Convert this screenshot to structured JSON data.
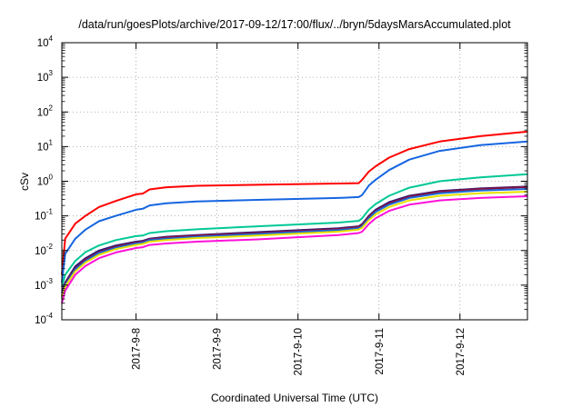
{
  "chart_data": {
    "type": "line",
    "title": "/data/run/goesPlots/archive/2017-09-12/17:00/flux/../bryn/5daysMarsAccumulated.plot",
    "xlabel": "Coordinated Universal Time (UTC)",
    "ylabel": "cSv",
    "y_scale": "log",
    "ylim": [
      0.0001,
      10000
    ],
    "xlim": [
      "2017-09-07 02:00",
      "2017-09-12 20:00"
    ],
    "x_ticks": [
      "2017-9-8",
      "2017-9-9",
      "2017-9-10",
      "2017-9-11",
      "2017-9-12"
    ],
    "y_ticks": [
      {
        "value": 0.0001,
        "base": "10",
        "exp": "-4"
      },
      {
        "value": 0.001,
        "base": "10",
        "exp": "-3"
      },
      {
        "value": 0.01,
        "base": "10",
        "exp": "-2"
      },
      {
        "value": 0.1,
        "base": "10",
        "exp": "-1"
      },
      {
        "value": 1,
        "base": "10",
        "exp": "0"
      },
      {
        "value": 10,
        "base": "10",
        "exp": "1"
      },
      {
        "value": 100,
        "base": "10",
        "exp": "2"
      },
      {
        "value": 1000,
        "base": "10",
        "exp": "3"
      },
      {
        "value": 10000,
        "base": "10",
        "exp": "4"
      }
    ],
    "grid": "dotted",
    "legend": "none",
    "series": [
      {
        "color": "#ff0000",
        "points": [
          [
            "2017-09-07 02:00",
            0.002
          ],
          [
            "2017-09-07 03:00",
            0.022
          ],
          [
            "2017-09-07 06:00",
            0.06
          ],
          [
            "2017-09-07 09:00",
            0.1
          ],
          [
            "2017-09-07 13:00",
            0.18
          ],
          [
            "2017-09-07 18:00",
            0.27
          ],
          [
            "2017-09-08 00:00",
            0.42
          ],
          [
            "2017-09-08 02:00",
            0.44
          ],
          [
            "2017-09-08 04:00",
            0.58
          ],
          [
            "2017-09-08 09:00",
            0.67
          ],
          [
            "2017-09-08 18:00",
            0.74
          ],
          [
            "2017-09-09 12:00",
            0.79
          ],
          [
            "2017-09-10 12:00",
            0.86
          ],
          [
            "2017-09-10 18:00",
            0.88
          ],
          [
            "2017-09-10 19:00",
            1.1
          ],
          [
            "2017-09-10 21:00",
            1.9
          ],
          [
            "2017-09-10 23:00",
            2.7
          ],
          [
            "2017-09-11 03:00",
            4.8
          ],
          [
            "2017-09-11 09:00",
            8.5
          ],
          [
            "2017-09-11 18:00",
            14
          ],
          [
            "2017-09-12 06:00",
            20
          ],
          [
            "2017-09-12 20:00",
            27
          ]
        ]
      },
      {
        "color": "#1565e0",
        "points": [
          [
            "2017-09-07 02:00",
            0.0012
          ],
          [
            "2017-09-07 03:00",
            0.008
          ],
          [
            "2017-09-07 06:00",
            0.022
          ],
          [
            "2017-09-07 09:00",
            0.04
          ],
          [
            "2017-09-07 13:00",
            0.07
          ],
          [
            "2017-09-07 18:00",
            0.1
          ],
          [
            "2017-09-08 00:00",
            0.15
          ],
          [
            "2017-09-08 02:00",
            0.16
          ],
          [
            "2017-09-08 04:00",
            0.2
          ],
          [
            "2017-09-08 09:00",
            0.23
          ],
          [
            "2017-09-08 18:00",
            0.26
          ],
          [
            "2017-09-09 12:00",
            0.29
          ],
          [
            "2017-09-10 12:00",
            0.33
          ],
          [
            "2017-09-10 18:00",
            0.35
          ],
          [
            "2017-09-10 19:00",
            0.4
          ],
          [
            "2017-09-10 21:00",
            0.75
          ],
          [
            "2017-09-10 23:00",
            1.1
          ],
          [
            "2017-09-11 03:00",
            2.1
          ],
          [
            "2017-09-11 09:00",
            4.2
          ],
          [
            "2017-09-11 18:00",
            7.5
          ],
          [
            "2017-09-12 06:00",
            11
          ],
          [
            "2017-09-12 20:00",
            14
          ]
        ]
      },
      {
        "color": "#00c896",
        "points": [
          [
            "2017-09-07 02:00",
            0.0009
          ],
          [
            "2017-09-07 03:00",
            0.002
          ],
          [
            "2017-09-07 06:00",
            0.005
          ],
          [
            "2017-09-07 09:00",
            0.009
          ],
          [
            "2017-09-07 13:00",
            0.014
          ],
          [
            "2017-09-07 18:00",
            0.02
          ],
          [
            "2017-09-08 00:00",
            0.026
          ],
          [
            "2017-09-08 02:00",
            0.027
          ],
          [
            "2017-09-08 04:00",
            0.032
          ],
          [
            "2017-09-08 09:00",
            0.036
          ],
          [
            "2017-09-08 18:00",
            0.041
          ],
          [
            "2017-09-09 12:00",
            0.05
          ],
          [
            "2017-09-10 12:00",
            0.064
          ],
          [
            "2017-09-10 18:00",
            0.072
          ],
          [
            "2017-09-10 19:00",
            0.085
          ],
          [
            "2017-09-10 21:00",
            0.15
          ],
          [
            "2017-09-10 23:00",
            0.22
          ],
          [
            "2017-09-11 03:00",
            0.38
          ],
          [
            "2017-09-11 09:00",
            0.65
          ],
          [
            "2017-09-11 18:00",
            1.0
          ],
          [
            "2017-09-12 06:00",
            1.3
          ],
          [
            "2017-09-12 20:00",
            1.6
          ]
        ]
      },
      {
        "color": "#2a1a78",
        "points": [
          [
            "2017-09-07 02:00",
            0.0006
          ],
          [
            "2017-09-07 03:00",
            0.0012
          ],
          [
            "2017-09-07 06:00",
            0.0035
          ],
          [
            "2017-09-07 09:00",
            0.006
          ],
          [
            "2017-09-07 13:00",
            0.01
          ],
          [
            "2017-09-07 18:00",
            0.014
          ],
          [
            "2017-09-08 00:00",
            0.018
          ],
          [
            "2017-09-08 02:00",
            0.019
          ],
          [
            "2017-09-08 04:00",
            0.022
          ],
          [
            "2017-09-08 09:00",
            0.025
          ],
          [
            "2017-09-08 18:00",
            0.028
          ],
          [
            "2017-09-09 12:00",
            0.034
          ],
          [
            "2017-09-10 12:00",
            0.044
          ],
          [
            "2017-09-10 18:00",
            0.05
          ],
          [
            "2017-09-10 19:00",
            0.058
          ],
          [
            "2017-09-10 21:00",
            0.1
          ],
          [
            "2017-09-10 23:00",
            0.15
          ],
          [
            "2017-09-11 03:00",
            0.25
          ],
          [
            "2017-09-11 09:00",
            0.38
          ],
          [
            "2017-09-11 18:00",
            0.52
          ],
          [
            "2017-09-12 06:00",
            0.62
          ],
          [
            "2017-09-12 20:00",
            0.7
          ]
        ]
      },
      {
        "color": "#8a1040",
        "points": [
          [
            "2017-09-07 02:00",
            0.0005
          ],
          [
            "2017-09-07 03:00",
            0.0011
          ],
          [
            "2017-09-07 06:00",
            0.003
          ],
          [
            "2017-09-07 09:00",
            0.0055
          ],
          [
            "2017-09-07 13:00",
            0.009
          ],
          [
            "2017-09-07 18:00",
            0.013
          ],
          [
            "2017-09-08 00:00",
            0.017
          ],
          [
            "2017-09-08 02:00",
            0.018
          ],
          [
            "2017-09-08 04:00",
            0.021
          ],
          [
            "2017-09-08 09:00",
            0.024
          ],
          [
            "2017-09-08 18:00",
            0.027
          ],
          [
            "2017-09-09 12:00",
            0.032
          ],
          [
            "2017-09-10 12:00",
            0.042
          ],
          [
            "2017-09-10 18:00",
            0.048
          ],
          [
            "2017-09-10 19:00",
            0.055
          ],
          [
            "2017-09-10 21:00",
            0.095
          ],
          [
            "2017-09-10 23:00",
            0.14
          ],
          [
            "2017-09-11 03:00",
            0.23
          ],
          [
            "2017-09-11 09:00",
            0.36
          ],
          [
            "2017-09-11 18:00",
            0.5
          ],
          [
            "2017-09-12 06:00",
            0.6
          ],
          [
            "2017-09-12 20:00",
            0.68
          ]
        ]
      },
      {
        "color": "#1a6ad8",
        "points": [
          [
            "2017-09-07 02:00",
            0.00045
          ],
          [
            "2017-09-07 03:00",
            0.001
          ],
          [
            "2017-09-07 06:00",
            0.0028
          ],
          [
            "2017-09-07 09:00",
            0.005
          ],
          [
            "2017-09-07 13:00",
            0.0085
          ],
          [
            "2017-09-07 18:00",
            0.012
          ],
          [
            "2017-09-08 00:00",
            0.016
          ],
          [
            "2017-09-08 02:00",
            0.017
          ],
          [
            "2017-09-08 04:00",
            0.02
          ],
          [
            "2017-09-08 09:00",
            0.022
          ],
          [
            "2017-09-08 18:00",
            0.025
          ],
          [
            "2017-09-09 12:00",
            0.03
          ],
          [
            "2017-09-10 12:00",
            0.039
          ],
          [
            "2017-09-10 18:00",
            0.044
          ],
          [
            "2017-09-10 19:00",
            0.05
          ],
          [
            "2017-09-10 21:00",
            0.085
          ],
          [
            "2017-09-10 23:00",
            0.13
          ],
          [
            "2017-09-11 03:00",
            0.21
          ],
          [
            "2017-09-11 09:00",
            0.33
          ],
          [
            "2017-09-11 18:00",
            0.45
          ],
          [
            "2017-09-12 06:00",
            0.54
          ],
          [
            "2017-09-12 20:00",
            0.6
          ]
        ]
      },
      {
        "color": "#e8e000",
        "points": [
          [
            "2017-09-07 02:00",
            0.0004
          ],
          [
            "2017-09-07 03:00",
            0.0009
          ],
          [
            "2017-09-07 06:00",
            0.0025
          ],
          [
            "2017-09-07 09:00",
            0.0045
          ],
          [
            "2017-09-07 13:00",
            0.0075
          ],
          [
            "2017-09-07 18:00",
            0.011
          ],
          [
            "2017-09-08 00:00",
            0.0145
          ],
          [
            "2017-09-08 02:00",
            0.0155
          ],
          [
            "2017-09-08 04:00",
            0.018
          ],
          [
            "2017-09-08 09:00",
            0.02
          ],
          [
            "2017-09-08 18:00",
            0.023
          ],
          [
            "2017-09-09 12:00",
            0.027
          ],
          [
            "2017-09-10 12:00",
            0.035
          ],
          [
            "2017-09-10 18:00",
            0.04
          ],
          [
            "2017-09-10 19:00",
            0.045
          ],
          [
            "2017-09-10 21:00",
            0.075
          ],
          [
            "2017-09-10 23:00",
            0.11
          ],
          [
            "2017-09-11 03:00",
            0.18
          ],
          [
            "2017-09-11 09:00",
            0.28
          ],
          [
            "2017-09-11 18:00",
            0.38
          ],
          [
            "2017-09-12 06:00",
            0.45
          ],
          [
            "2017-09-12 20:00",
            0.5
          ]
        ]
      },
      {
        "color": "#ff10d8",
        "points": [
          [
            "2017-09-07 02:00",
            0.0003
          ],
          [
            "2017-09-07 03:00",
            0.0007
          ],
          [
            "2017-09-07 06:00",
            0.002
          ],
          [
            "2017-09-07 09:00",
            0.0036
          ],
          [
            "2017-09-07 13:00",
            0.006
          ],
          [
            "2017-09-07 18:00",
            0.0088
          ],
          [
            "2017-09-08 00:00",
            0.0118
          ],
          [
            "2017-09-08 02:00",
            0.0125
          ],
          [
            "2017-09-08 04:00",
            0.0145
          ],
          [
            "2017-09-08 09:00",
            0.016
          ],
          [
            "2017-09-08 18:00",
            0.018
          ],
          [
            "2017-09-09 12:00",
            0.021
          ],
          [
            "2017-09-10 12:00",
            0.028
          ],
          [
            "2017-09-10 18:00",
            0.032
          ],
          [
            "2017-09-10 19:00",
            0.035
          ],
          [
            "2017-09-10 21:00",
            0.058
          ],
          [
            "2017-09-10 23:00",
            0.085
          ],
          [
            "2017-09-11 03:00",
            0.14
          ],
          [
            "2017-09-11 09:00",
            0.21
          ],
          [
            "2017-09-11 18:00",
            0.28
          ],
          [
            "2017-09-12 06:00",
            0.33
          ],
          [
            "2017-09-12 20:00",
            0.37
          ]
        ]
      }
    ]
  }
}
